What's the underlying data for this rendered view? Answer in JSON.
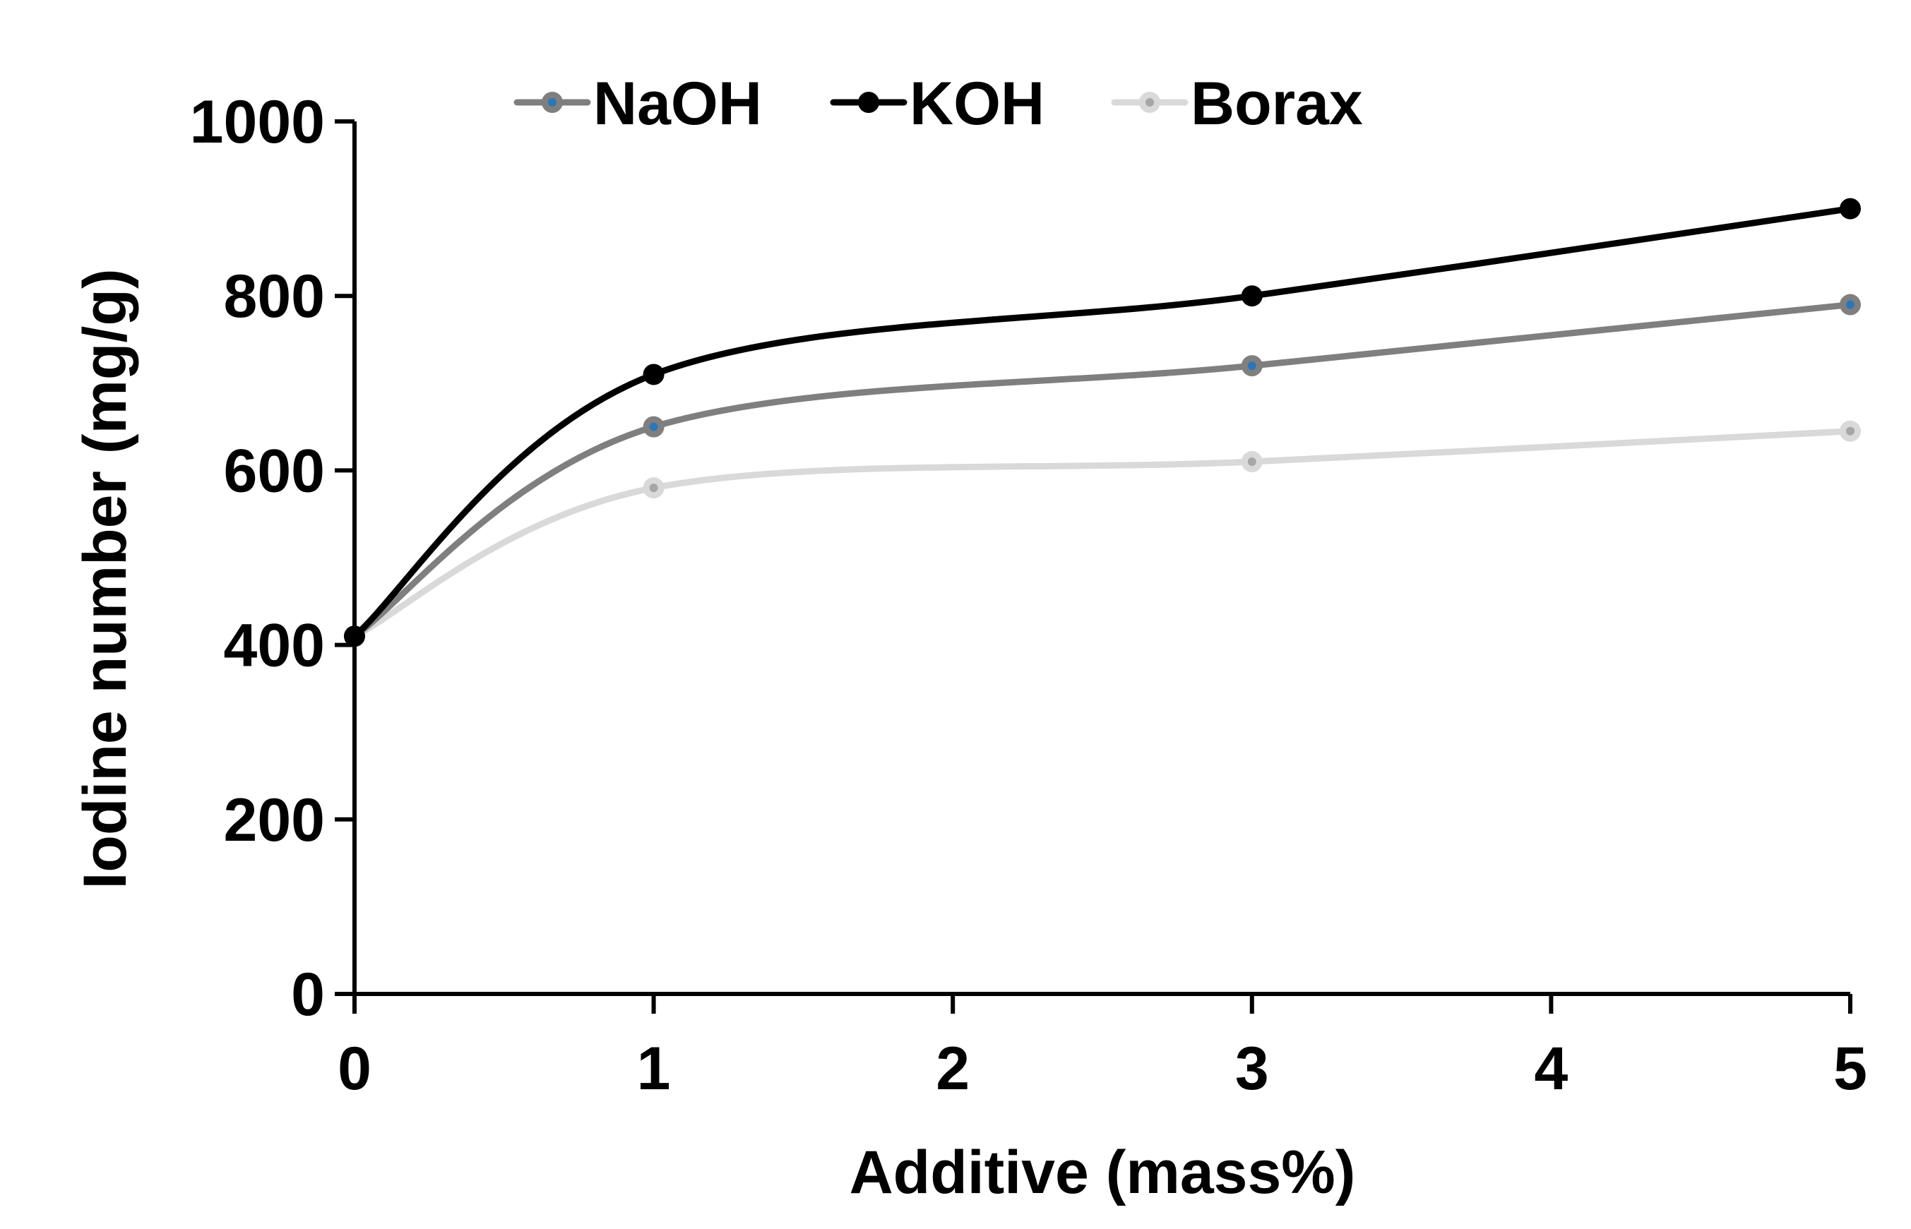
{
  "chart_data": {
    "type": "line",
    "title": "",
    "xlabel": "Additive (mass%)",
    "ylabel": "Iodine number (mg/g)",
    "xlim": [
      0,
      5
    ],
    "ylim": [
      0,
      1000
    ],
    "x_ticks": [
      0,
      1,
      2,
      3,
      4,
      5
    ],
    "y_ticks": [
      0,
      200,
      400,
      600,
      800,
      1000
    ],
    "grid": false,
    "legend_position": "top",
    "smooth": true,
    "series": [
      {
        "name": "NaOH",
        "color": "#7f7f7f",
        "marker_center": "#2e75b6",
        "x": [
          0,
          1,
          3,
          5
        ],
        "y": [
          410,
          650,
          720,
          790
        ]
      },
      {
        "name": "KOH",
        "color": "#000000",
        "marker_center": "#000000",
        "x": [
          0,
          1,
          3,
          5
        ],
        "y": [
          410,
          710,
          800,
          900
        ]
      },
      {
        "name": "Borax",
        "color": "#d9d9d9",
        "marker_center": "#a6a6a6",
        "x": [
          0,
          1,
          3,
          5
        ],
        "y": [
          410,
          580,
          610,
          645
        ]
      }
    ]
  }
}
